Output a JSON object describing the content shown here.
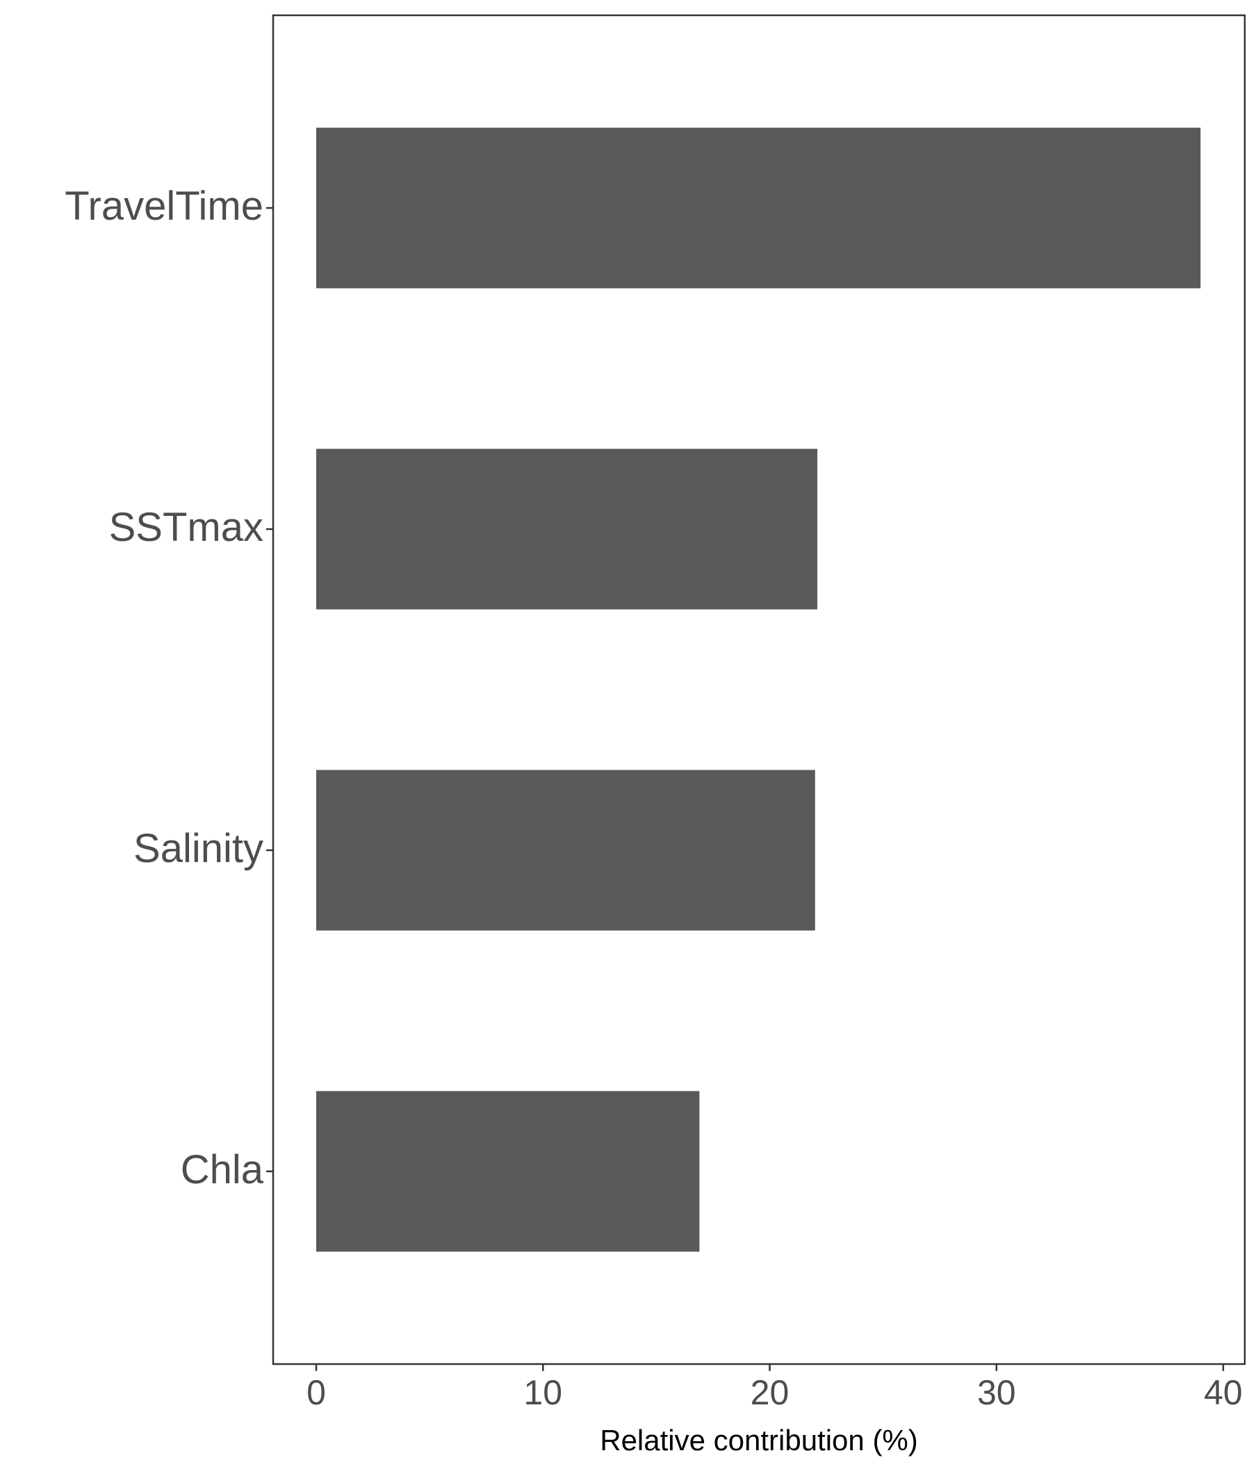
{
  "chart_data": {
    "type": "bar",
    "orientation": "horizontal",
    "categories": [
      "TravelTime",
      "SSTmax",
      "Salinity",
      "Chla"
    ],
    "values": [
      39.0,
      22.1,
      22.0,
      16.9
    ],
    "title": "",
    "xlabel": "Relative contribution (%)",
    "ylabel": "",
    "xlim": [
      -1.9,
      40.95
    ],
    "x_ticks": [
      0,
      10,
      20,
      30,
      40
    ],
    "grid": false,
    "legend": "none",
    "bar_color": "#595959",
    "axis_color": "#333333",
    "tick_label_color": "#4d4d4d"
  }
}
